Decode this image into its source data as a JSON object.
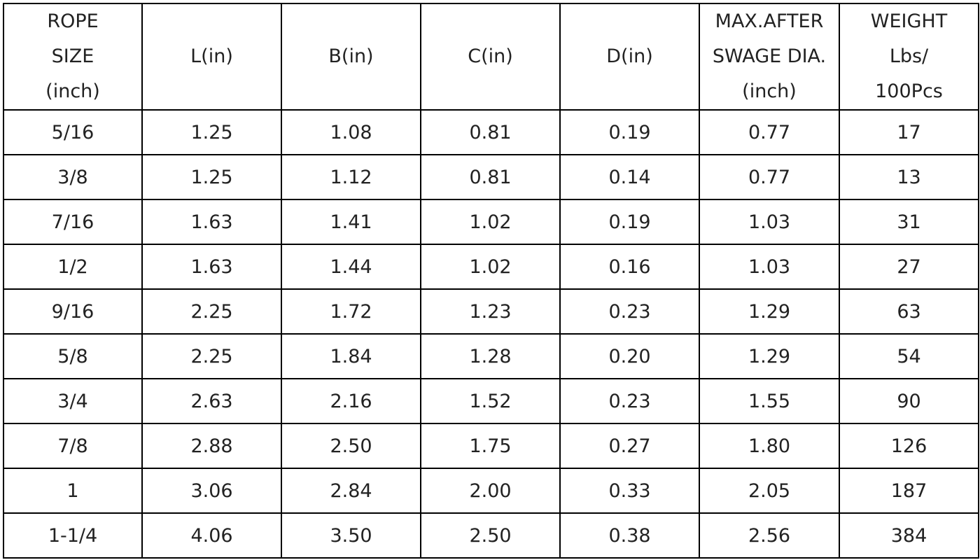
{
  "table": {
    "header": [
      [
        "ROPE",
        "SIZE",
        "(inch)"
      ],
      [
        "L(in)"
      ],
      [
        "B(in)"
      ],
      [
        "C(in)"
      ],
      [
        "D(in)"
      ],
      [
        "MAX.AFTER",
        "SWAGE DIA.",
        "(inch)"
      ],
      [
        "WEIGHT",
        "Lbs/",
        "100Pcs"
      ]
    ],
    "rows": [
      [
        "5/16",
        "1.25",
        "1.08",
        "0.81",
        "0.19",
        "0.77",
        "17"
      ],
      [
        "3/8",
        "1.25",
        "1.12",
        "0.81",
        "0.14",
        "0.77",
        "13"
      ],
      [
        "7/16",
        "1.63",
        "1.41",
        "1.02",
        "0.19",
        "1.03",
        "31"
      ],
      [
        "1/2",
        "1.63",
        "1.44",
        "1.02",
        "0.16",
        "1.03",
        "27"
      ],
      [
        "9/16",
        "2.25",
        "1.72",
        "1.23",
        "0.23",
        "1.29",
        "63"
      ],
      [
        "5/8",
        "2.25",
        "1.84",
        "1.28",
        "0.20",
        "1.29",
        "54"
      ],
      [
        "3/4",
        "2.63",
        "2.16",
        "1.52",
        "0.23",
        "1.55",
        "90"
      ],
      [
        "7/8",
        "2.88",
        "2.50",
        "1.75",
        "0.27",
        "1.80",
        "126"
      ],
      [
        "1",
        "3.06",
        "2.84",
        "2.00",
        "0.33",
        "2.05",
        "187"
      ],
      [
        "1-1/4",
        "4.06",
        "3.50",
        "2.50",
        "0.38",
        "2.56",
        "384"
      ]
    ]
  }
}
